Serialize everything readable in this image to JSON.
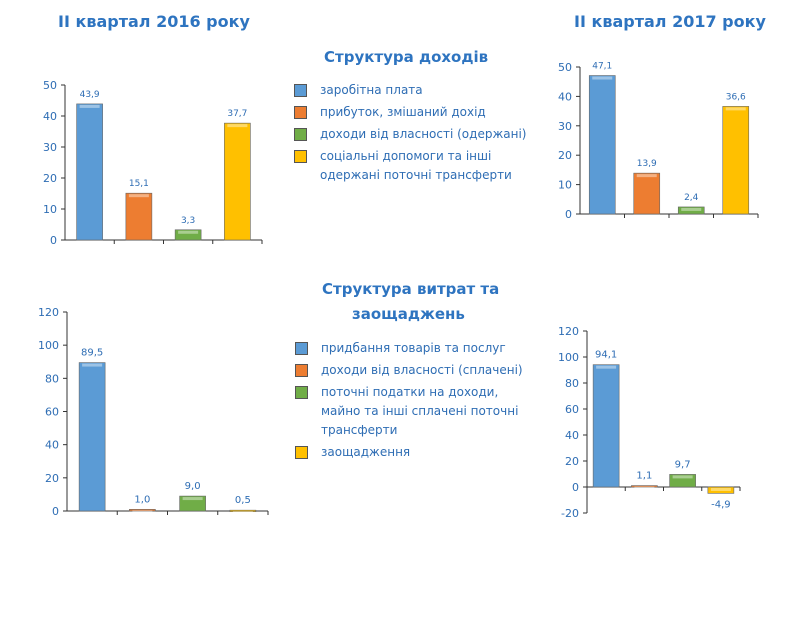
{
  "titles": {
    "left": "ІІ квартал 2016 року",
    "right": "ІІ квартал 2017 року",
    "income": "Структура доходів",
    "expense_line1": "Структура витрат та",
    "expense_line2": "заощаджень"
  },
  "colors": {
    "blue": "#5b9bd5",
    "orange": "#ed7d31",
    "green": "#70ad47",
    "yellow": "#ffc000",
    "text": "#2e6db4"
  },
  "legend_income": [
    "заробітна плата",
    "прибуток, змішаний дохід",
    "доходи від власності (одержані)",
    "соціальні допомоги та інші одержані поточні трансферти"
  ],
  "legend_expense": [
    "придбання товарів та послуг",
    "доходи від власності (сплачені)",
    "поточні податки на доходи, майно та інші сплачені поточні трансферти",
    "заощадження"
  ],
  "chart_data": [
    {
      "type": "bar",
      "title": "Структура доходів — ІІ квартал 2016 року",
      "values": [
        43.9,
        15.1,
        3.3,
        37.7
      ],
      "labels": [
        "43,9",
        "15,1",
        "3,3",
        "37,7"
      ],
      "ylim": [
        0,
        50
      ],
      "yticks": [
        0,
        10,
        20,
        30,
        40,
        50
      ]
    },
    {
      "type": "bar",
      "title": "Структура доходів — ІІ квартал 2017 року",
      "values": [
        47.1,
        13.9,
        2.4,
        36.6
      ],
      "labels": [
        "47,1",
        "13,9",
        "2,4",
        "36,6"
      ],
      "ylim": [
        0,
        50
      ],
      "yticks": [
        0,
        10,
        20,
        30,
        40,
        50
      ]
    },
    {
      "type": "bar",
      "title": "Структура витрат та заощаджень — ІІ квартал 2016 року",
      "values": [
        89.5,
        1.0,
        9.0,
        0.5
      ],
      "labels": [
        "89,5",
        "1,0",
        "9,0",
        "0,5"
      ],
      "ylim": [
        0,
        120
      ],
      "yticks": [
        0,
        20,
        40,
        60,
        80,
        100,
        120
      ]
    },
    {
      "type": "bar",
      "title": "Структура витрат та заощаджень — ІІ квартал 2017 року",
      "values": [
        94.1,
        1.1,
        9.7,
        -4.9
      ],
      "labels": [
        "94,1",
        "1,1",
        "9,7",
        "-4,9"
      ],
      "ylim": [
        -20,
        120
      ],
      "yticks": [
        -20,
        0,
        20,
        40,
        60,
        80,
        100,
        120
      ]
    }
  ]
}
